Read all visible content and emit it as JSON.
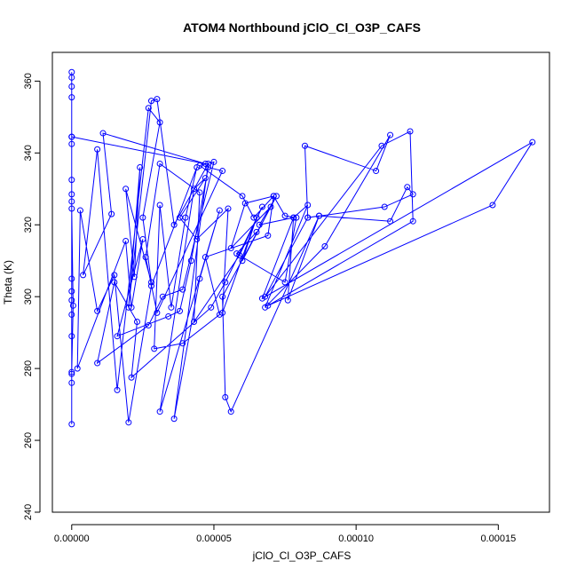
{
  "chart_data": {
    "type": "scatter",
    "title": "ATOM4 Northbound jClO_Cl_O3P_CAFS",
    "xlabel": "jClO_Cl_O3P_CAFS",
    "ylabel": "Theta (K)",
    "xlim": [
      -6.8e-06,
      0.000168
    ],
    "ylim": [
      240,
      368
    ],
    "x_ticks": [
      0,
      5e-05,
      0.0001,
      0.00015
    ],
    "x_tick_labels": [
      "0.00000",
      "0.00005",
      "0.00010",
      "0.00015"
    ],
    "y_ticks": [
      240,
      260,
      280,
      300,
      320,
      340,
      360
    ],
    "y_tick_labels": [
      "240",
      "260",
      "280",
      "300",
      "320",
      "340",
      "360"
    ],
    "grid": false,
    "legend": "none",
    "color": "#0000ff",
    "series": [
      {
        "style": "line+markers",
        "points": [
          [
            0,
            264.5
          ],
          [
            0,
            362.5
          ],
          [
            0,
            361
          ],
          [
            0,
            358.5
          ],
          [
            0,
            355.5
          ],
          [
            0,
            344.5
          ],
          [
            0,
            342.5
          ],
          [
            0,
            332.5
          ],
          [
            0,
            328.5
          ],
          [
            0,
            326.5
          ],
          [
            0,
            324.5
          ],
          [
            5e-07,
            297.5
          ],
          [
            0,
            279
          ],
          [
            0,
            276
          ],
          [
            0,
            305
          ],
          [
            0,
            301.5
          ],
          [
            0,
            299
          ],
          [
            0,
            295
          ],
          [
            0,
            289
          ],
          [
            0,
            278.5
          ],
          [
            0,
            344.5
          ],
          [
            4.7e-05,
            337
          ],
          [
            1.1e-05,
            345.5
          ],
          [
            1.4e-05,
            323
          ],
          [
            4e-06,
            306
          ],
          [
            9e-06,
            341
          ],
          [
            1.6e-05,
            274
          ],
          [
            2.7e-05,
            352.5
          ],
          [
            3.1e-05,
            348.5
          ],
          [
            2.5e-05,
            322
          ],
          [
            2.8e-05,
            304
          ],
          [
            1.9e-05,
            330
          ],
          [
            2.2e-05,
            305.5
          ],
          [
            2.4e-05,
            336
          ],
          [
            2e-05,
            297
          ],
          [
            2.8e-05,
            354.5
          ],
          [
            3e-05,
            355
          ],
          [
            3.6e-05,
            320
          ],
          [
            4.8e-05,
            337
          ],
          [
            3.6e-05,
            266
          ],
          [
            4.5e-05,
            305
          ],
          [
            5.2e-05,
            324
          ],
          [
            3.1e-05,
            268
          ],
          [
            4.3e-05,
            330
          ],
          [
            4.7e-05,
            333
          ],
          [
            3.8e-05,
            322
          ],
          [
            4.4e-05,
            316
          ],
          [
            5.5e-05,
            324.5
          ],
          [
            5.3e-05,
            295.5
          ],
          [
            6.5e-05,
            322
          ],
          [
            6e-05,
            310
          ],
          [
            7.2e-05,
            328
          ],
          [
            6.6e-05,
            320
          ],
          [
            7.8e-05,
            322
          ],
          [
            8.3e-05,
            325.5
          ],
          [
            6.8e-05,
            297
          ],
          [
            8.9e-05,
            314
          ],
          [
            0.000112,
            345
          ],
          [
            0.000107,
            335
          ],
          [
            8.2e-05,
            342
          ],
          [
            8.3e-05,
            322
          ],
          [
            8.7e-05,
            322.5
          ],
          [
            0.000112,
            321
          ],
          [
            0.000118,
            330.5
          ],
          [
            0.00012,
            328.5
          ],
          [
            0.00011,
            325
          ],
          [
            8.3e-05,
            322
          ],
          [
            6.8e-05,
            300
          ],
          [
            0.000109,
            342
          ],
          [
            0.000119,
            346
          ],
          [
            0.00012,
            321
          ],
          [
            6.9e-05,
            297.5
          ],
          [
            0.000148,
            325.5
          ],
          [
            0.000162,
            343
          ],
          [
            6.7e-05,
            299.5
          ],
          [
            7.8e-05,
            322
          ],
          [
            7.6e-05,
            299
          ],
          [
            8.7e-05,
            322.5
          ],
          [
            5.6e-05,
            268
          ],
          [
            5.4e-05,
            272
          ],
          [
            5.3e-05,
            300
          ],
          [
            7e-05,
            325
          ],
          [
            5.6e-05,
            313.5
          ],
          [
            6.1e-05,
            326
          ],
          [
            7.1e-05,
            328
          ],
          [
            6.9e-05,
            317
          ],
          [
            4.7e-05,
            311
          ],
          [
            5.2e-05,
            295
          ],
          [
            3.9e-05,
            287
          ],
          [
            2.9e-05,
            285.5
          ],
          [
            3.1e-05,
            325.5
          ],
          [
            3.5e-05,
            297
          ],
          [
            4e-05,
            322
          ],
          [
            4.4e-05,
            336
          ],
          [
            2.8e-05,
            303
          ],
          [
            2e-05,
            265
          ],
          [
            1.5e-05,
            306
          ],
          [
            9e-06,
            296
          ],
          [
            3e-06,
            324
          ],
          [
            2e-06,
            280
          ],
          [
            1.9e-05,
            315.5
          ],
          [
            2.1e-05,
            297
          ],
          [
            2.5e-05,
            316
          ],
          [
            1.6e-05,
            289
          ],
          [
            3.4e-05,
            294.5
          ],
          [
            3.8e-05,
            296
          ],
          [
            4.2e-05,
            310
          ],
          [
            4.8e-05,
            336
          ],
          [
            5.3e-05,
            335
          ],
          [
            3e-05,
            295.5
          ],
          [
            2.6e-05,
            311
          ],
          [
            3.1e-05,
            337
          ],
          [
            4.5e-05,
            329
          ],
          [
            4.3e-05,
            293
          ],
          [
            5.9e-05,
            311.5
          ],
          [
            6.7e-05,
            325
          ],
          [
            5.4e-05,
            304
          ],
          [
            4.9e-05,
            297
          ],
          [
            2.1e-05,
            277.5
          ],
          [
            2.3e-05,
            293
          ],
          [
            1.5e-05,
            304
          ],
          [
            9e-06,
            281.5
          ],
          [
            2.7e-05,
            292
          ],
          [
            3.2e-05,
            300
          ],
          [
            3.9e-05,
            302
          ],
          [
            5e-05,
            337.5
          ],
          [
            4.5e-05,
            336.5
          ],
          [
            6e-05,
            328
          ],
          [
            6.4e-05,
            322
          ],
          [
            7.1e-05,
            328
          ],
          [
            7.5e-05,
            322.5
          ],
          [
            7.9e-05,
            322
          ],
          [
            7.5e-05,
            304
          ],
          [
            5.8e-05,
            312
          ],
          [
            6.5e-05,
            318
          ]
        ]
      }
    ]
  }
}
